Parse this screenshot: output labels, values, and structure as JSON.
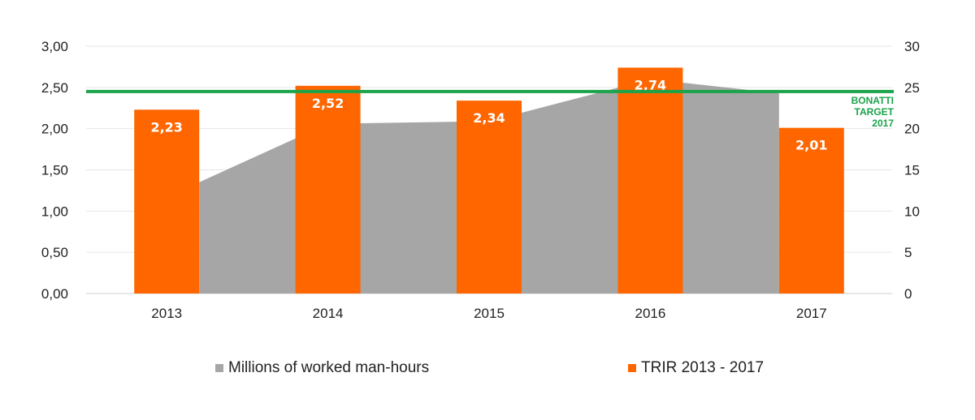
{
  "chart_data": {
    "type": "bar",
    "categories": [
      "2013",
      "2014",
      "2015",
      "2016",
      "2017"
    ],
    "y_left": {
      "ticks": [
        "0,00",
        "0,50",
        "1,00",
        "1,50",
        "2,00",
        "2,50",
        "3,00"
      ],
      "ylim": [
        0,
        3
      ]
    },
    "y_right": {
      "ticks": [
        "0",
        "5",
        "10",
        "15",
        "20",
        "25",
        "30"
      ],
      "ylim": [
        0,
        30
      ]
    },
    "series": [
      {
        "name": "Millions of worked man-hours",
        "kind": "area",
        "axis": "right",
        "color": "#a6a6a6",
        "values": [
          13.5,
          20.6,
          20.9,
          26.0,
          24.3
        ]
      },
      {
        "name": "TRIR 2013 - 2017",
        "kind": "bar",
        "axis": "left",
        "color": "#ff6600",
        "values": [
          2.23,
          2.52,
          2.34,
          2.74,
          2.01
        ],
        "labels": [
          "2,23",
          "2,52",
          "2,34",
          "2,74",
          "2,01"
        ]
      }
    ],
    "target_line": {
      "value": 2.45,
      "color": "#1aa34a",
      "label_lines": [
        "BONATTI",
        "TARGET",
        "2017"
      ]
    },
    "grid": true,
    "legend": "bottom"
  }
}
